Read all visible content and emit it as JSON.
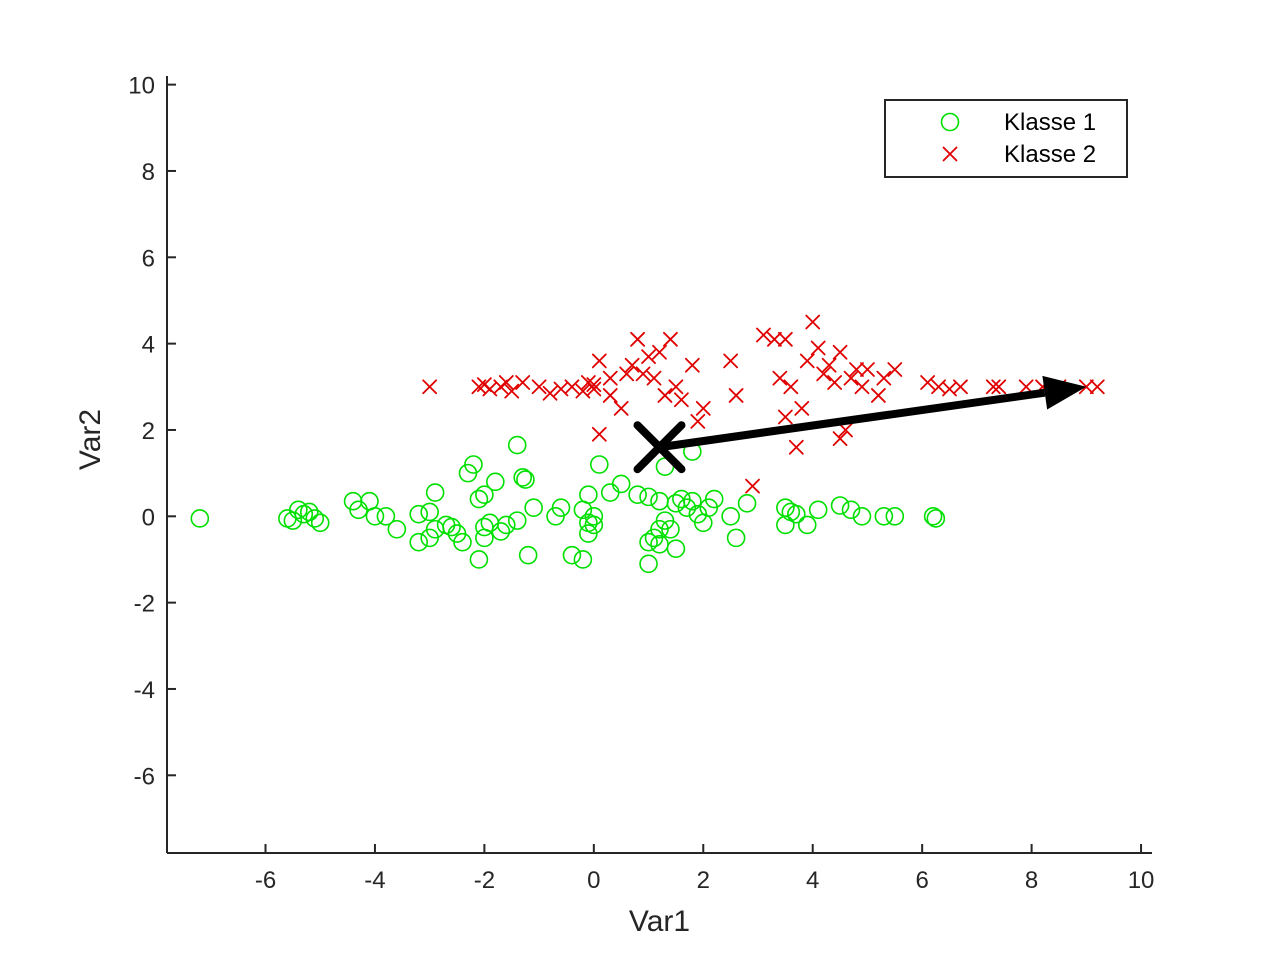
{
  "chart_data": {
    "type": "scatter",
    "title": "",
    "xlabel": "Var1",
    "ylabel": "Var2",
    "xlim": [
      -7.8,
      10.2
    ],
    "ylim": [
      -7.8,
      10.2
    ],
    "xticks": [
      -6,
      -4,
      -2,
      0,
      2,
      4,
      6,
      8,
      10
    ],
    "yticks": [
      -6,
      -4,
      -2,
      0,
      2,
      4,
      6,
      8,
      10
    ],
    "grid": false,
    "legend": {
      "position": "top-right",
      "entries": [
        "Klasse 1",
        "Klasse 2"
      ]
    },
    "series": [
      {
        "name": "Klasse 1",
        "marker": "circle",
        "color": "#00e000",
        "points": [
          [
            -7.2,
            -0.05
          ],
          [
            -5.6,
            -0.05
          ],
          [
            -5.5,
            -0.1
          ],
          [
            -5.4,
            0.15
          ],
          [
            -5.3,
            0.05
          ],
          [
            -5.2,
            0.1
          ],
          [
            -5.1,
            -0.05
          ],
          [
            -5.0,
            -0.15
          ],
          [
            -4.4,
            0.35
          ],
          [
            -4.3,
            0.15
          ],
          [
            -4.1,
            0.35
          ],
          [
            -4.0,
            0.0
          ],
          [
            -3.8,
            0.0
          ],
          [
            -3.6,
            -0.3
          ],
          [
            -3.2,
            0.05
          ],
          [
            -3.2,
            -0.6
          ],
          [
            -3.0,
            0.1
          ],
          [
            -2.9,
            0.55
          ],
          [
            -3.0,
            -0.5
          ],
          [
            -2.9,
            -0.3
          ],
          [
            -2.7,
            -0.2
          ],
          [
            -2.6,
            -0.25
          ],
          [
            -2.5,
            -0.4
          ],
          [
            -2.4,
            -0.6
          ],
          [
            -2.3,
            1.0
          ],
          [
            -2.2,
            1.2
          ],
          [
            -2.1,
            0.4
          ],
          [
            -2.0,
            0.5
          ],
          [
            -2.0,
            -0.5
          ],
          [
            -2.0,
            -0.25
          ],
          [
            -1.9,
            -0.15
          ],
          [
            -1.8,
            0.8
          ],
          [
            -1.7,
            -0.35
          ],
          [
            -1.6,
            -0.2
          ],
          [
            -1.4,
            -0.1
          ],
          [
            -1.4,
            1.65
          ],
          [
            -1.3,
            0.9
          ],
          [
            -1.25,
            0.85
          ],
          [
            -1.2,
            -0.9
          ],
          [
            -1.1,
            0.2
          ],
          [
            -2.1,
            -1.0
          ],
          [
            -0.7,
            0.0
          ],
          [
            -0.6,
            0.2
          ],
          [
            -0.4,
            -0.9
          ],
          [
            -0.2,
            -1.0
          ],
          [
            -0.2,
            0.15
          ],
          [
            -0.1,
            0.5
          ],
          [
            -0.1,
            -0.15
          ],
          [
            -0.1,
            -0.4
          ],
          [
            0.0,
            0.0
          ],
          [
            0.0,
            -0.2
          ],
          [
            0.1,
            1.2
          ],
          [
            0.3,
            0.55
          ],
          [
            0.5,
            0.75
          ],
          [
            0.8,
            0.5
          ],
          [
            1.0,
            0.45
          ],
          [
            1.0,
            -0.6
          ],
          [
            1.0,
            -1.1
          ],
          [
            1.1,
            -0.5
          ],
          [
            1.2,
            -0.3
          ],
          [
            1.2,
            -0.65
          ],
          [
            1.2,
            0.35
          ],
          [
            1.3,
            -0.1
          ],
          [
            1.3,
            1.15
          ],
          [
            1.4,
            -0.3
          ],
          [
            1.5,
            0.3
          ],
          [
            1.5,
            -0.75
          ],
          [
            1.6,
            0.4
          ],
          [
            1.7,
            0.2
          ],
          [
            1.8,
            0.35
          ],
          [
            1.9,
            0.05
          ],
          [
            2.0,
            -0.15
          ],
          [
            2.1,
            0.2
          ],
          [
            2.2,
            0.4
          ],
          [
            2.5,
            0.0
          ],
          [
            2.6,
            -0.5
          ],
          [
            2.8,
            0.3
          ],
          [
            1.8,
            1.5
          ],
          [
            3.5,
            0.2
          ],
          [
            3.5,
            -0.2
          ],
          [
            3.6,
            0.1
          ],
          [
            3.7,
            0.05
          ],
          [
            3.9,
            -0.2
          ],
          [
            4.1,
            0.15
          ],
          [
            4.5,
            0.25
          ],
          [
            4.7,
            0.15
          ],
          [
            4.9,
            0.0
          ],
          [
            5.3,
            0.0
          ],
          [
            5.5,
            0.0
          ],
          [
            6.2,
            0.0
          ],
          [
            6.25,
            -0.05
          ]
        ]
      },
      {
        "name": "Klasse 2",
        "marker": "x",
        "color": "#e00000",
        "points": [
          [
            -3.0,
            3.0
          ],
          [
            -2.1,
            3.0
          ],
          [
            -2.0,
            3.05
          ],
          [
            -1.9,
            2.95
          ],
          [
            -1.7,
            3.0
          ],
          [
            -1.6,
            3.1
          ],
          [
            -1.5,
            2.9
          ],
          [
            -1.3,
            3.1
          ],
          [
            -1.0,
            3.0
          ],
          [
            -0.8,
            2.85
          ],
          [
            -0.6,
            2.95
          ],
          [
            -0.4,
            3.0
          ],
          [
            -0.2,
            2.9
          ],
          [
            -0.1,
            3.1
          ],
          [
            0.0,
            2.95
          ],
          [
            0.0,
            3.05
          ],
          [
            0.1,
            3.6
          ],
          [
            0.1,
            1.9
          ],
          [
            0.3,
            3.2
          ],
          [
            0.3,
            2.8
          ],
          [
            0.5,
            2.5
          ],
          [
            0.6,
            3.3
          ],
          [
            0.7,
            3.5
          ],
          [
            0.8,
            4.1
          ],
          [
            0.9,
            3.3
          ],
          [
            1.0,
            3.7
          ],
          [
            1.1,
            3.2
          ],
          [
            1.2,
            3.8
          ],
          [
            1.3,
            2.8
          ],
          [
            1.4,
            4.1
          ],
          [
            1.5,
            3.0
          ],
          [
            1.6,
            2.7
          ],
          [
            1.8,
            3.5
          ],
          [
            1.9,
            2.2
          ],
          [
            2.0,
            2.5
          ],
          [
            2.5,
            3.6
          ],
          [
            2.6,
            2.8
          ],
          [
            2.9,
            0.7
          ],
          [
            3.1,
            4.2
          ],
          [
            3.3,
            4.1
          ],
          [
            3.4,
            3.2
          ],
          [
            3.5,
            4.1
          ],
          [
            3.5,
            2.3
          ],
          [
            3.6,
            3.0
          ],
          [
            3.7,
            1.6
          ],
          [
            3.8,
            2.5
          ],
          [
            3.9,
            3.6
          ],
          [
            4.0,
            4.5
          ],
          [
            4.1,
            3.9
          ],
          [
            4.2,
            3.3
          ],
          [
            4.3,
            3.5
          ],
          [
            4.4,
            3.1
          ],
          [
            4.5,
            3.8
          ],
          [
            4.6,
            2.0
          ],
          [
            4.7,
            3.2
          ],
          [
            4.8,
            3.4
          ],
          [
            4.9,
            3.0
          ],
          [
            5.0,
            3.4
          ],
          [
            5.2,
            2.8
          ],
          [
            5.3,
            3.2
          ],
          [
            5.5,
            3.4
          ],
          [
            6.1,
            3.1
          ],
          [
            6.3,
            3.0
          ],
          [
            6.5,
            2.95
          ],
          [
            6.7,
            3.0
          ],
          [
            7.3,
            3.0
          ],
          [
            7.4,
            3.0
          ],
          [
            7.9,
            3.0
          ],
          [
            8.2,
            3.0
          ],
          [
            8.5,
            3.0
          ],
          [
            9.0,
            3.0
          ],
          [
            9.2,
            3.0
          ],
          [
            4.5,
            1.8
          ]
        ]
      }
    ],
    "annotation": {
      "marker": {
        "shape": "x",
        "x": 1.2,
        "y": 1.6,
        "color": "#000000"
      },
      "arrow": {
        "from": [
          1.2,
          1.6
        ],
        "to": [
          9.0,
          3.0
        ],
        "color": "#000000"
      }
    }
  }
}
